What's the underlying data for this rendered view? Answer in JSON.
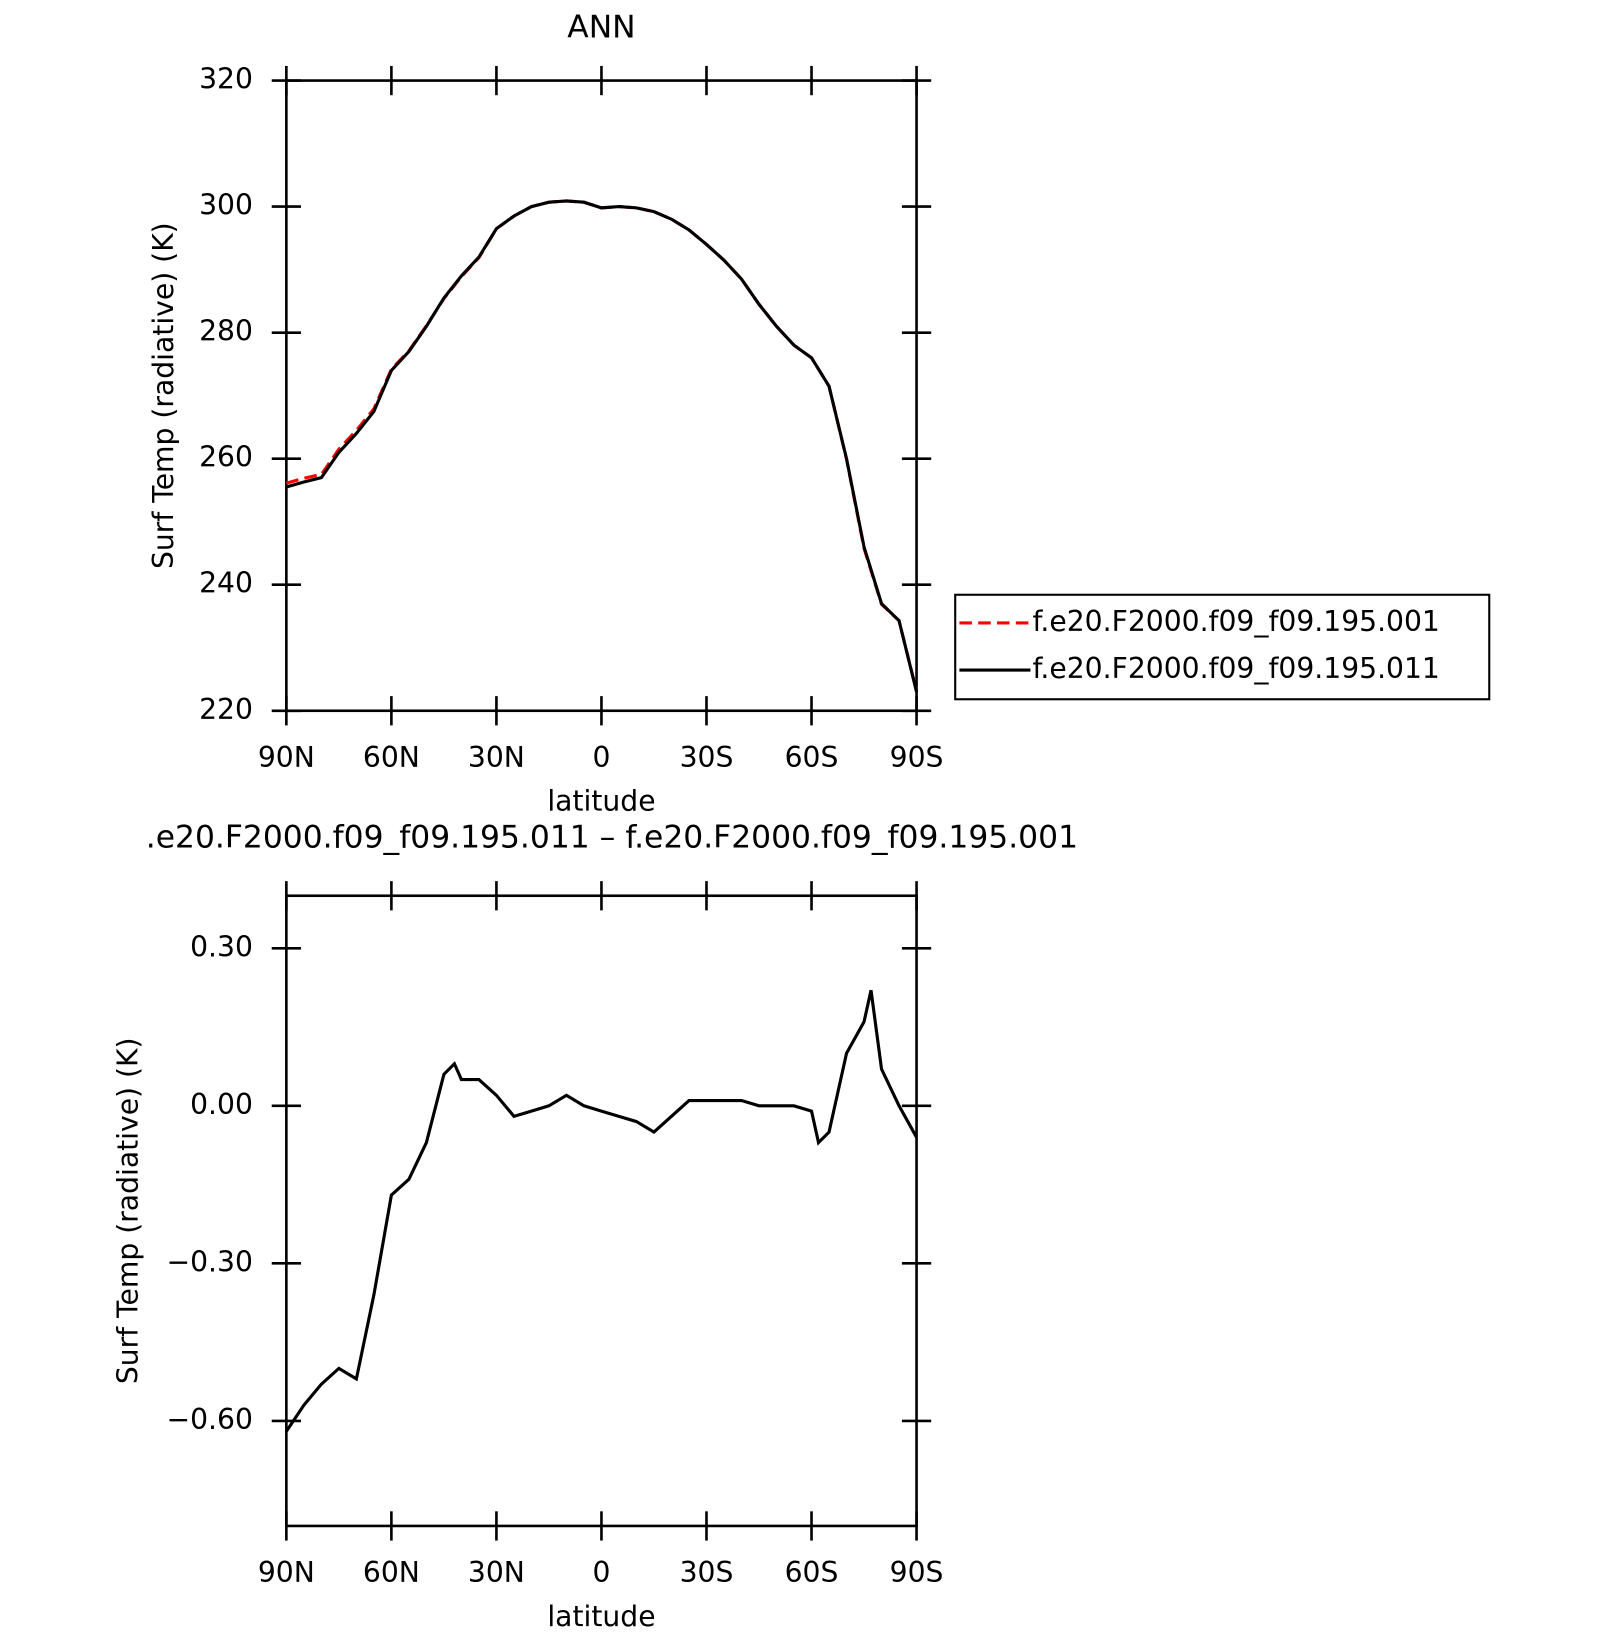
{
  "chart_data": [
    {
      "type": "line",
      "title": "ANN",
      "xlabel": "latitude",
      "ylabel": "Surf Temp (radiative) (K)",
      "x": [
        90,
        85,
        80,
        75,
        70,
        65,
        60,
        55,
        50,
        45,
        40,
        35,
        30,
        25,
        20,
        15,
        10,
        5,
        0,
        -5,
        -10,
        -15,
        -20,
        -25,
        -30,
        -35,
        -40,
        -45,
        -50,
        -55,
        -60,
        -65,
        -70,
        -75,
        -80,
        -85,
        -90
      ],
      "series": [
        {
          "name": "f.e20.F2000.f09_f09.195.001",
          "color": "#ff0000",
          "linestyle": "dashed",
          "values": [
            256.1,
            256.9,
            257.5,
            261.5,
            264.5,
            267.9,
            274.2,
            277.1,
            281.1,
            285.4,
            288.9,
            291.9,
            296.5,
            298.5,
            300.0,
            300.7,
            300.9,
            300.7,
            299.8,
            300.0,
            299.8,
            299.2,
            298.0,
            296.3,
            294.0,
            291.5,
            288.5,
            284.5,
            281.0,
            278.0,
            276.0,
            271.5,
            259.9,
            245.8,
            236.9,
            234.3,
            223.1
          ]
        },
        {
          "name": "f.e20.F2000.f09_f09.195.011",
          "color": "#000000",
          "linestyle": "solid",
          "values": [
            255.5,
            256.3,
            257.0,
            261.0,
            264.0,
            267.5,
            274.0,
            277.0,
            281.0,
            285.5,
            289.0,
            292.0,
            296.5,
            298.5,
            300.0,
            300.7,
            300.9,
            300.7,
            299.8,
            300.0,
            299.8,
            299.2,
            298.0,
            296.3,
            294.0,
            291.5,
            288.5,
            284.5,
            281.0,
            278.0,
            276.0,
            271.5,
            260.0,
            246.0,
            237.0,
            234.3,
            223.0
          ]
        }
      ],
      "xlim": [
        90,
        -90
      ],
      "xticks": [
        {
          "value": 90,
          "label": "90N"
        },
        {
          "value": 60,
          "label": "60N"
        },
        {
          "value": 30,
          "label": "30N"
        },
        0,
        {
          "value": -30,
          "label": "30S"
        },
        {
          "value": -60,
          "label": "60S"
        },
        {
          "value": -90,
          "label": "90S"
        }
      ],
      "ylim": [
        220,
        320
      ],
      "yticks": [
        220,
        240,
        260,
        280,
        300,
        320
      ],
      "legend": "outside right"
    },
    {
      "type": "line",
      "title": ".e20.F2000.f09_f09.195.011 – f.e20.F2000.f09_f09.195.001",
      "xlabel": "latitude",
      "ylabel": "Surf Temp (radiative) (K)",
      "x": [
        90,
        85,
        80,
        75,
        70,
        65,
        60,
        55,
        50,
        45,
        42,
        40,
        35,
        30,
        25,
        20,
        15,
        10,
        5,
        0,
        -5,
        -10,
        -15,
        -20,
        -25,
        -30,
        -35,
        -40,
        -45,
        -50,
        -55,
        -60,
        -62,
        -65,
        -70,
        -75,
        -77,
        -80,
        -85,
        -90
      ],
      "values": [
        -0.62,
        -0.57,
        -0.53,
        -0.5,
        -0.52,
        -0.36,
        -0.17,
        -0.14,
        -0.07,
        0.06,
        0.08,
        0.05,
        0.05,
        0.02,
        -0.02,
        -0.01,
        0.0,
        0.02,
        0.0,
        -0.01,
        -0.02,
        -0.03,
        -0.05,
        -0.02,
        0.01,
        0.01,
        0.01,
        0.01,
        0.0,
        0.0,
        0.0,
        -0.01,
        -0.07,
        -0.05,
        0.1,
        0.16,
        0.22,
        0.07,
        0.0,
        -0.06
      ],
      "color": "#000000",
      "xlim": [
        90,
        -90
      ],
      "xticks": [
        {
          "value": 90,
          "label": "90N"
        },
        {
          "value": 60,
          "label": "60N"
        },
        {
          "value": 30,
          "label": "30N"
        },
        0,
        {
          "value": -30,
          "label": "30S"
        },
        {
          "value": -60,
          "label": "60S"
        },
        {
          "value": -90,
          "label": "90S"
        }
      ],
      "ylim": [
        -0.8,
        0.4
      ],
      "yticks": [
        {
          "value": -0.6,
          "label": "−0.60"
        },
        {
          "value": -0.3,
          "label": "−0.30"
        },
        {
          "value": 0,
          "label": "0.00"
        },
        {
          "value": 0.3,
          "label": "0.30"
        }
      ]
    }
  ]
}
